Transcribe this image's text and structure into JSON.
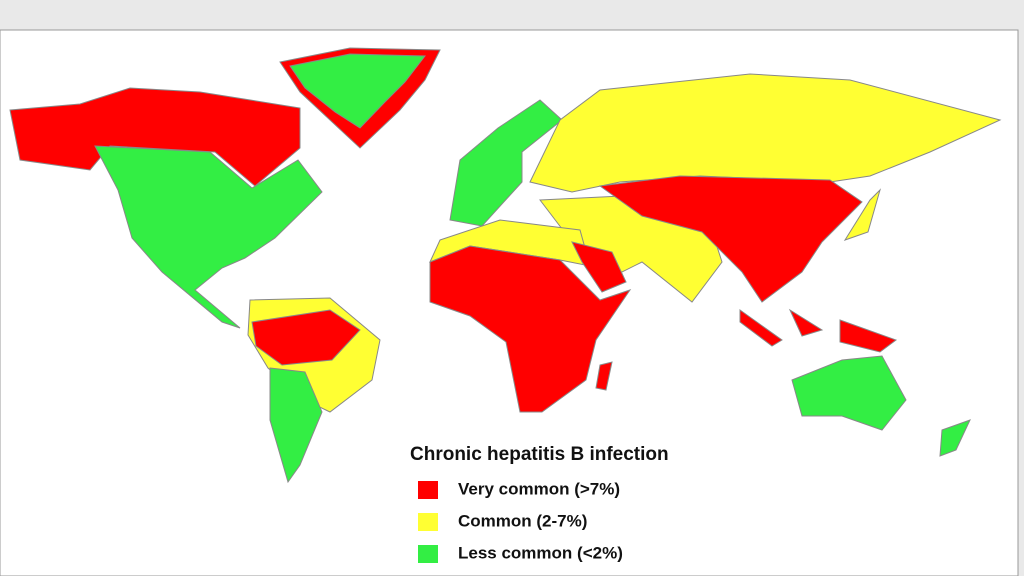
{
  "legend": {
    "title": "Chronic hepatitis B infection",
    "items": [
      {
        "label": "Very common (>7%)",
        "color": "#ff0000"
      },
      {
        "label": "Common (2-7%)",
        "color": "#ffff33"
      },
      {
        "label": "Less common (<2%)",
        "color": "#33ee44"
      }
    ]
  }
}
